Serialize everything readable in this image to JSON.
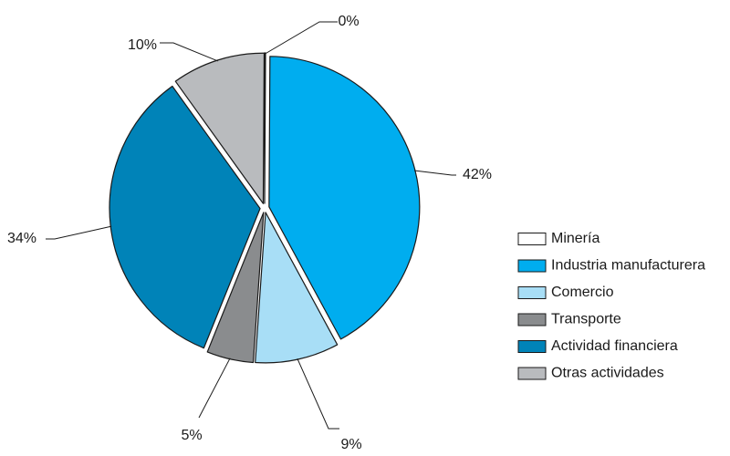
{
  "chart_data": {
    "type": "pie",
    "title": "",
    "slices": [
      {
        "label": "Minería",
        "value": 0,
        "display": "0%",
        "color": "#ffffff"
      },
      {
        "label": "Industria manufacturera",
        "value": 42,
        "display": "42%",
        "color": "#00adef"
      },
      {
        "label": "Comercio",
        "value": 9,
        "display": "9%",
        "color": "#a8def6"
      },
      {
        "label": "Transporte",
        "value": 5,
        "display": "5%",
        "color": "#8a8c8e"
      },
      {
        "label": "Actividad financiera",
        "value": 34,
        "display": "34%",
        "color": "#0083b8"
      },
      {
        "label": "Otras actividades",
        "value": 10,
        "display": "10%",
        "color": "#b9bbbe"
      }
    ],
    "legend_position": "right",
    "exploded": true
  }
}
